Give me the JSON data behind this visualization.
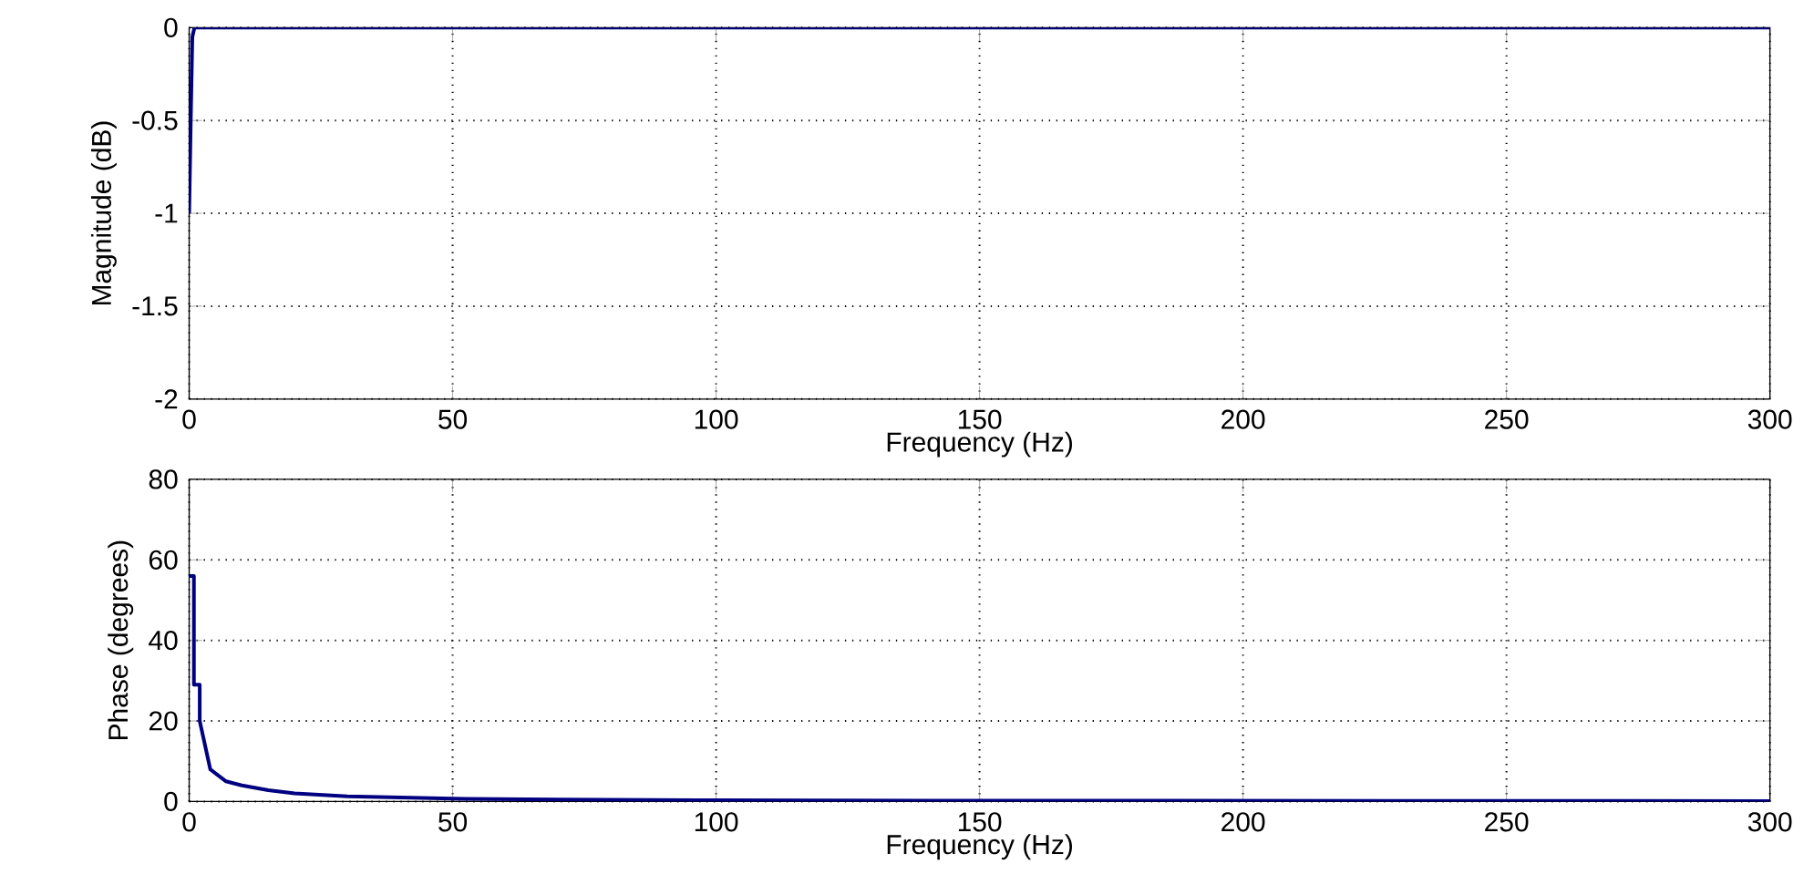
{
  "chart_data": [
    {
      "type": "line",
      "xlabel": "Frequency (Hz)",
      "ylabel": "Magnitude (dB)",
      "xlim": [
        0,
        300
      ],
      "ylim": [
        -2,
        0
      ],
      "xticks": [
        0,
        50,
        100,
        150,
        200,
        250,
        300
      ],
      "yticks": [
        -2,
        -1.5,
        -1,
        -0.5,
        0
      ],
      "grid": true,
      "series": [
        {
          "color": "#000080",
          "x": [
            0,
            0.3,
            0.6,
            1,
            300
          ],
          "values": [
            -1,
            -0.5,
            -0.05,
            0,
            0
          ]
        }
      ]
    },
    {
      "type": "line",
      "xlabel": "Frequency (Hz)",
      "ylabel": "Phase (degrees)",
      "xlim": [
        0,
        300
      ],
      "ylim": [
        0,
        80
      ],
      "xticks": [
        0,
        50,
        100,
        150,
        200,
        250,
        300
      ],
      "yticks": [
        0,
        20,
        40,
        60,
        80
      ],
      "grid": true,
      "series": [
        {
          "color": "#000080",
          "x": [
            0,
            0.9,
            0.9,
            2,
            2,
            4,
            7,
            10,
            15,
            20,
            30,
            40,
            50,
            70,
            100,
            150,
            300
          ],
          "values": [
            56,
            56,
            29,
            29,
            20,
            8,
            5,
            4,
            2.8,
            2,
            1.3,
            1,
            0.7,
            0.5,
            0.3,
            0.2,
            0.1
          ]
        }
      ]
    }
  ]
}
